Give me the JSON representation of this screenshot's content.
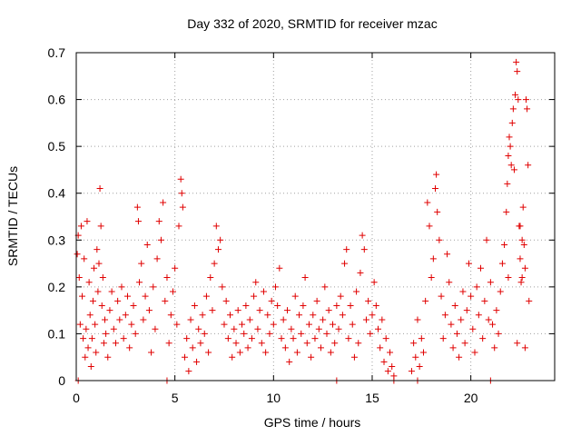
{
  "chart_data": {
    "type": "scatter",
    "title": "Day 332 of 2020, SRMTID for receiver mzac",
    "xlabel": "GPS time / hours",
    "ylabel": "SRMTID / TECUs",
    "xlim": [
      0,
      24.25
    ],
    "ylim": [
      0,
      0.7
    ],
    "xticks": [
      0,
      5,
      10,
      15,
      20
    ],
    "xtick_labels": [
      "0",
      "5",
      "10",
      "15",
      "20"
    ],
    "yticks": [
      0,
      0.1,
      0.2,
      0.3,
      0.4,
      0.5,
      0.6,
      0.7
    ],
    "ytick_labels": [
      "0",
      "0.1",
      "0.2",
      "0.3",
      "0.4",
      "0.5",
      "0.6",
      "0.7"
    ],
    "grid": true,
    "marker": "+",
    "color": "#e00000",
    "series": [
      {
        "name": "SRMTID",
        "points": [
          [
            0.05,
            0.27
          ],
          [
            0.1,
            0.31
          ],
          [
            0.15,
            0.22
          ],
          [
            0.2,
            0.12
          ],
          [
            0.25,
            0.33
          ],
          [
            0.3,
            0.18
          ],
          [
            0.35,
            0.09
          ],
          [
            0.4,
            0.26
          ],
          [
            0.45,
            0.05
          ],
          [
            0.5,
            0.11
          ],
          [
            0.55,
            0.34
          ],
          [
            0.6,
            0.07
          ],
          [
            0.65,
            0.21
          ],
          [
            0.7,
            0.14
          ],
          [
            0.75,
            0.03
          ],
          [
            0.8,
            0.09
          ],
          [
            0.85,
            0.17
          ],
          [
            0.9,
            0.24
          ],
          [
            0.95,
            0.12
          ],
          [
            1.0,
            0.06
          ],
          [
            1.05,
            0.28
          ],
          [
            1.1,
            0.19
          ],
          [
            1.15,
            0.25
          ],
          [
            1.2,
            0.41
          ],
          [
            1.25,
            0.33
          ],
          [
            1.3,
            0.16
          ],
          [
            1.35,
            0.22
          ],
          [
            1.4,
            0.08
          ],
          [
            1.45,
            0.13
          ],
          [
            1.5,
            0.1
          ],
          [
            1.6,
            0.05
          ],
          [
            1.7,
            0.15
          ],
          [
            1.8,
            0.19
          ],
          [
            1.9,
            0.11
          ],
          [
            2.0,
            0.08
          ],
          [
            2.1,
            0.17
          ],
          [
            2.2,
            0.13
          ],
          [
            2.3,
            0.2
          ],
          [
            2.4,
            0.09
          ],
          [
            2.5,
            0.14
          ],
          [
            2.6,
            0.18
          ],
          [
            2.7,
            0.07
          ],
          [
            2.8,
            0.12
          ],
          [
            2.9,
            0.16
          ],
          [
            3.0,
            0.1
          ],
          [
            3.1,
            0.37
          ],
          [
            3.15,
            0.34
          ],
          [
            3.2,
            0.21
          ],
          [
            3.3,
            0.25
          ],
          [
            3.4,
            0.13
          ],
          [
            3.5,
            0.18
          ],
          [
            3.6,
            0.29
          ],
          [
            3.7,
            0.15
          ],
          [
            3.8,
            0.06
          ],
          [
            3.9,
            0.2
          ],
          [
            4.0,
            0.11
          ],
          [
            4.1,
            0.26
          ],
          [
            4.2,
            0.34
          ],
          [
            4.3,
            0.3
          ],
          [
            4.4,
            0.38
          ],
          [
            4.5,
            0.17
          ],
          [
            4.6,
            0.22
          ],
          [
            4.7,
            0.08
          ],
          [
            4.8,
            0.14
          ],
          [
            4.9,
            0.19
          ],
          [
            5.0,
            0.24
          ],
          [
            5.1,
            0.12
          ],
          [
            5.2,
            0.33
          ],
          [
            5.3,
            0.43
          ],
          [
            5.35,
            0.4
          ],
          [
            5.4,
            0.37
          ],
          [
            5.5,
            0.05
          ],
          [
            5.6,
            0.09
          ],
          [
            5.7,
            0.02
          ],
          [
            5.8,
            0.13
          ],
          [
            5.9,
            0.07
          ],
          [
            6.0,
            0.16
          ],
          [
            6.1,
            0.04
          ],
          [
            6.2,
            0.11
          ],
          [
            6.3,
            0.08
          ],
          [
            6.4,
            0.14
          ],
          [
            6.5,
            0.1
          ],
          [
            6.6,
            0.18
          ],
          [
            6.7,
            0.06
          ],
          [
            6.8,
            0.22
          ],
          [
            6.9,
            0.15
          ],
          [
            7.0,
            0.25
          ],
          [
            7.1,
            0.33
          ],
          [
            7.2,
            0.28
          ],
          [
            7.3,
            0.3
          ],
          [
            7.4,
            0.2
          ],
          [
            7.5,
            0.12
          ],
          [
            7.6,
            0.17
          ],
          [
            7.7,
            0.09
          ],
          [
            7.8,
            0.14
          ],
          [
            7.9,
            0.05
          ],
          [
            8.0,
            0.11
          ],
          [
            8.1,
            0.08
          ],
          [
            8.2,
            0.15
          ],
          [
            8.3,
            0.06
          ],
          [
            8.4,
            0.12
          ],
          [
            8.5,
            0.1
          ],
          [
            8.6,
            0.16
          ],
          [
            8.7,
            0.07
          ],
          [
            8.8,
            0.13
          ],
          [
            8.9,
            0.09
          ],
          [
            9.0,
            0.18
          ],
          [
            9.1,
            0.21
          ],
          [
            9.2,
            0.11
          ],
          [
            9.3,
            0.15
          ],
          [
            9.4,
            0.08
          ],
          [
            9.5,
            0.19
          ],
          [
            9.6,
            0.06
          ],
          [
            9.7,
            0.14
          ],
          [
            9.8,
            0.1
          ],
          [
            9.9,
            0.17
          ],
          [
            10.0,
            0.12
          ],
          [
            10.1,
            0.2
          ],
          [
            10.2,
            0.16
          ],
          [
            10.3,
            0.24
          ],
          [
            10.4,
            0.09
          ],
          [
            10.5,
            0.13
          ],
          [
            10.6,
            0.07
          ],
          [
            10.7,
            0.15
          ],
          [
            10.8,
            0.04
          ],
          [
            10.9,
            0.11
          ],
          [
            11.0,
            0.09
          ],
          [
            11.1,
            0.18
          ],
          [
            11.2,
            0.06
          ],
          [
            11.3,
            0.14
          ],
          [
            11.4,
            0.1
          ],
          [
            11.5,
            0.16
          ],
          [
            11.6,
            0.22
          ],
          [
            11.7,
            0.08
          ],
          [
            11.8,
            0.12
          ],
          [
            11.9,
            0.05
          ],
          [
            12.0,
            0.14
          ],
          [
            12.1,
            0.09
          ],
          [
            12.2,
            0.17
          ],
          [
            12.3,
            0.11
          ],
          [
            12.4,
            0.07
          ],
          [
            12.5,
            0.13
          ],
          [
            12.6,
            0.2
          ],
          [
            12.7,
            0.1
          ],
          [
            12.8,
            0.15
          ],
          [
            12.9,
            0.06
          ],
          [
            13.0,
            0.12
          ],
          [
            13.1,
            0.08
          ],
          [
            13.2,
            0.16
          ],
          [
            13.3,
            0.11
          ],
          [
            13.4,
            0.18
          ],
          [
            13.5,
            0.14
          ],
          [
            13.6,
            0.25
          ],
          [
            13.7,
            0.28
          ],
          [
            13.8,
            0.09
          ],
          [
            13.9,
            0.16
          ],
          [
            14.0,
            0.12
          ],
          [
            14.1,
            0.05
          ],
          [
            14.2,
            0.19
          ],
          [
            14.3,
            0.08
          ],
          [
            14.4,
            0.23
          ],
          [
            14.5,
            0.31
          ],
          [
            14.6,
            0.28
          ],
          [
            14.7,
            0.13
          ],
          [
            14.8,
            0.17
          ],
          [
            14.9,
            0.1
          ],
          [
            15.0,
            0.14
          ],
          [
            15.1,
            0.21
          ],
          [
            15.2,
            0.16
          ],
          [
            15.3,
            0.11
          ],
          [
            15.4,
            0.07
          ],
          [
            15.5,
            0.13
          ],
          [
            15.6,
            0.04
          ],
          [
            15.7,
            0.09
          ],
          [
            15.8,
            0.02
          ],
          [
            15.9,
            0.06
          ],
          [
            16.0,
            0.03
          ],
          [
            16.1,
            0.01
          ],
          [
            17.0,
            0.02
          ],
          [
            17.1,
            0.08
          ],
          [
            17.2,
            0.05
          ],
          [
            17.3,
            0.13
          ],
          [
            17.4,
            0.03
          ],
          [
            17.5,
            0.09
          ],
          [
            17.6,
            0.06
          ],
          [
            17.7,
            0.17
          ],
          [
            17.8,
            0.38
          ],
          [
            17.9,
            0.33
          ],
          [
            18.0,
            0.22
          ],
          [
            18.1,
            0.26
          ],
          [
            18.2,
            0.41
          ],
          [
            18.25,
            0.44
          ],
          [
            18.3,
            0.36
          ],
          [
            18.4,
            0.3
          ],
          [
            18.5,
            0.18
          ],
          [
            18.6,
            0.09
          ],
          [
            18.7,
            0.14
          ],
          [
            18.8,
            0.27
          ],
          [
            18.9,
            0.21
          ],
          [
            19.0,
            0.12
          ],
          [
            19.1,
            0.07
          ],
          [
            19.2,
            0.16
          ],
          [
            19.3,
            0.1
          ],
          [
            19.4,
            0.05
          ],
          [
            19.5,
            0.13
          ],
          [
            19.6,
            0.19
          ],
          [
            19.7,
            0.08
          ],
          [
            19.8,
            0.15
          ],
          [
            19.9,
            0.25
          ],
          [
            20.0,
            0.18
          ],
          [
            20.1,
            0.11
          ],
          [
            20.2,
            0.06
          ],
          [
            20.3,
            0.2
          ],
          [
            20.4,
            0.14
          ],
          [
            20.5,
            0.24
          ],
          [
            20.6,
            0.09
          ],
          [
            20.7,
            0.17
          ],
          [
            20.8,
            0.3
          ],
          [
            20.9,
            0.13
          ],
          [
            21.0,
            0.21
          ],
          [
            21.1,
            0.12
          ],
          [
            21.2,
            0.07
          ],
          [
            21.3,
            0.15
          ],
          [
            21.4,
            0.1
          ],
          [
            21.5,
            0.19
          ],
          [
            21.6,
            0.25
          ],
          [
            21.7,
            0.29
          ],
          [
            21.8,
            0.36
          ],
          [
            21.85,
            0.42
          ],
          [
            21.9,
            0.48
          ],
          [
            21.95,
            0.52
          ],
          [
            22.0,
            0.5
          ],
          [
            22.05,
            0.46
          ],
          [
            22.1,
            0.55
          ],
          [
            22.15,
            0.58
          ],
          [
            22.2,
            0.45
          ],
          [
            22.25,
            0.61
          ],
          [
            22.3,
            0.68
          ],
          [
            22.35,
            0.66
          ],
          [
            22.4,
            0.6
          ],
          [
            22.45,
            0.33
          ],
          [
            22.5,
            0.26
          ],
          [
            22.55,
            0.21
          ],
          [
            22.6,
            0.3
          ],
          [
            22.65,
            0.37
          ],
          [
            22.7,
            0.29
          ],
          [
            22.75,
            0.24
          ],
          [
            22.8,
            0.6
          ],
          [
            22.85,
            0.58
          ],
          [
            22.9,
            0.46
          ],
          [
            22.95,
            0.17
          ],
          [
            22.35,
            0.08
          ],
          [
            22.75,
            0.07
          ],
          [
            22.5,
            0.33
          ],
          [
            21.9,
            0.22
          ],
          [
            22.6,
            0.22
          ],
          [
            0.1,
            0.0
          ],
          [
            4.6,
            0.0
          ],
          [
            13.2,
            0.0
          ],
          [
            16.1,
            0.0
          ],
          [
            17.3,
            0.0
          ],
          [
            21.0,
            0.0
          ]
        ]
      }
    ]
  }
}
